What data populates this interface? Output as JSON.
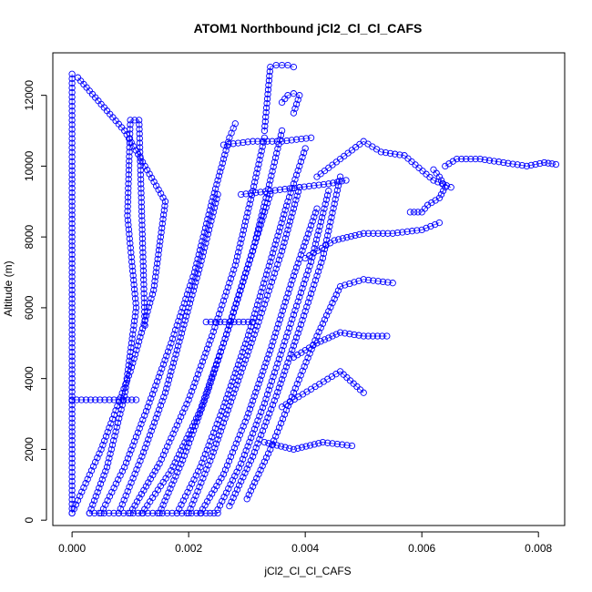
{
  "chart_data": {
    "type": "scatter",
    "title": "ATOM1 Northbound jCl2_Cl_Cl_CAFS",
    "xlabel": "jCl2_Cl_Cl_CAFS",
    "ylabel": "Altitude (m)",
    "xlim": [
      -0.00033,
      0.00845
    ],
    "ylim": [
      -150,
      13200
    ],
    "xticks": [
      0.0,
      0.002,
      0.004,
      0.006,
      0.008
    ],
    "xtick_labels": [
      "0.000",
      "0.002",
      "0.004",
      "0.006",
      "0.008"
    ],
    "yticks": [
      0,
      2000,
      4000,
      6000,
      8000,
      10000,
      12000
    ],
    "ytick_labels": [
      "0",
      "2000",
      "4000",
      "6000",
      "8000",
      "10000",
      "12000"
    ],
    "grid": false,
    "marker": "open-circle",
    "color": "#0000ff",
    "series": [
      {
        "x": [
          0.0,
          0.0,
          0.0,
          0.0,
          0.0,
          0.0,
          0.0
        ],
        "y": [
          200,
          2000,
          4000,
          6000,
          8000,
          10000,
          12600
        ]
      },
      {
        "x": [
          0.0,
          0.0005,
          0.001,
          0.0014,
          0.0016,
          0.0009,
          0.0001
        ],
        "y": [
          200,
          2000,
          4200,
          6500,
          9000,
          11000,
          12500
        ]
      },
      {
        "x": [
          0.0003,
          0.0006,
          0.0009,
          0.0011,
          0.00095,
          0.001,
          0.00115,
          0.00125
        ],
        "y": [
          200,
          1500,
          3500,
          6000,
          8600,
          11300,
          11300,
          5500
        ]
      },
      {
        "x": [
          0.0005,
          0.0009,
          0.0013,
          0.0017,
          0.0021,
          0.0024,
          0.0027,
          0.0028
        ],
        "y": [
          200,
          1500,
          3200,
          5000,
          7000,
          9000,
          10800,
          11200
        ]
      },
      {
        "x": [
          0.0008,
          0.0012,
          0.0016,
          0.0019,
          0.0022,
          0.0025
        ],
        "y": [
          200,
          1800,
          3600,
          5400,
          7200,
          9200
        ]
      },
      {
        "x": [
          0.001,
          0.0015,
          0.002,
          0.0024,
          0.0028,
          0.0031,
          0.0033
        ],
        "y": [
          200,
          1600,
          3400,
          5200,
          7200,
          9300,
          10800
        ]
      },
      {
        "x": [
          0.0012,
          0.0017,
          0.0022,
          0.0026,
          0.003,
          0.0034
        ],
        "y": [
          200,
          1400,
          3100,
          5000,
          7100,
          9200
        ]
      },
      {
        "x": [
          0.0015,
          0.0019,
          0.0023,
          0.0027,
          0.0031,
          0.0034,
          0.0036
        ],
        "y": [
          200,
          1700,
          3500,
          5500,
          7600,
          9600,
          11000
        ]
      },
      {
        "x": [
          0.0018,
          0.0022,
          0.0026,
          0.003,
          0.0034,
          0.0037,
          0.004
        ],
        "y": [
          200,
          1500,
          3200,
          5100,
          7300,
          9000,
          10500
        ]
      },
      {
        "x": [
          0.002,
          0.0024,
          0.0028,
          0.0032,
          0.0036,
          0.0039
        ],
        "y": [
          200,
          1800,
          3700,
          5600,
          7600,
          9400
        ]
      },
      {
        "x": [
          0.0022,
          0.0026,
          0.003,
          0.0034,
          0.0038,
          0.0042
        ],
        "y": [
          200,
          1300,
          2900,
          4800,
          6900,
          8800
        ]
      },
      {
        "x": [
          0.0025,
          0.0029,
          0.0033,
          0.0037,
          0.0041,
          0.0044
        ],
        "y": [
          300,
          1600,
          3300,
          5300,
          7300,
          9300
        ]
      },
      {
        "x": [
          0.0027,
          0.0031,
          0.0035,
          0.0039,
          0.0043,
          0.0046
        ],
        "y": [
          400,
          1800,
          3500,
          5400,
          7400,
          9700
        ]
      },
      {
        "x": [
          0.003,
          0.0034,
          0.0038,
          0.0042,
          0.0046,
          0.005,
          0.0055
        ],
        "y": [
          600,
          2000,
          3600,
          5200,
          6600,
          6800,
          6700
        ]
      },
      {
        "x": [
          0.0033,
          0.0038,
          0.0043,
          0.0048
        ],
        "y": [
          2200,
          2000,
          2200,
          2100
        ]
      },
      {
        "x": [
          0.0036,
          0.0041,
          0.0046,
          0.005
        ],
        "y": [
          3200,
          3700,
          4200,
          3600
        ]
      },
      {
        "x": [
          0.0038,
          0.0042,
          0.0046,
          0.005,
          0.0054
        ],
        "y": [
          4600,
          5000,
          5300,
          5200,
          5200
        ]
      },
      {
        "x": [
          0.004,
          0.0045,
          0.005,
          0.0055,
          0.006,
          0.0063
        ],
        "y": [
          7400,
          7900,
          8100,
          8100,
          8200,
          8400
        ]
      },
      {
        "x": [
          0.0042,
          0.0046,
          0.005,
          0.0053,
          0.0057,
          0.0062,
          0.0065
        ],
        "y": [
          9700,
          10200,
          10700,
          10400,
          10300,
          9600,
          9400
        ]
      },
      {
        "x": [
          0.0064,
          0.0066,
          0.007,
          0.0074,
          0.0078,
          0.0081,
          0.0083
        ],
        "y": [
          10000,
          10200,
          10200,
          10100,
          10000,
          10100,
          10050
        ]
      },
      {
        "x": [
          0.0062,
          0.0063,
          0.0064,
          0.0063,
          0.0061,
          0.006,
          0.0058
        ],
        "y": [
          9900,
          9700,
          9400,
          9100,
          8900,
          8700,
          8700
        ]
      },
      {
        "x": [
          0.0033,
          0.0034,
          0.0035,
          0.0036,
          0.0037,
          0.0038
        ],
        "y": [
          11000,
          12800,
          12850,
          12850,
          12850,
          12800
        ]
      },
      {
        "x": [
          0.0036,
          0.0037,
          0.0038,
          0.0039,
          0.0038
        ],
        "y": [
          11800,
          12000,
          12050,
          12000,
          11500
        ]
      },
      {
        "x": [
          0.0029,
          0.0034,
          0.0039,
          0.0044,
          0.0047
        ],
        "y": [
          9200,
          9300,
          9400,
          9500,
          9600
        ]
      },
      {
        "x": [
          0.0026,
          0.0031,
          0.0036,
          0.0041
        ],
        "y": [
          10600,
          10700,
          10700,
          10800
        ]
      },
      {
        "x": [
          0.0023,
          0.0027,
          0.0031
        ],
        "y": [
          5600,
          5600,
          5600
        ]
      },
      {
        "x": [
          0.0003,
          0.0008,
          0.0013,
          0.0018,
          0.0023,
          0.0025
        ],
        "y": [
          200,
          200,
          200,
          200,
          200,
          200
        ]
      },
      {
        "x": [
          0.0,
          0.0004,
          0.0008,
          0.0011
        ],
        "y": [
          3400,
          3400,
          3400,
          3400
        ]
      }
    ]
  }
}
